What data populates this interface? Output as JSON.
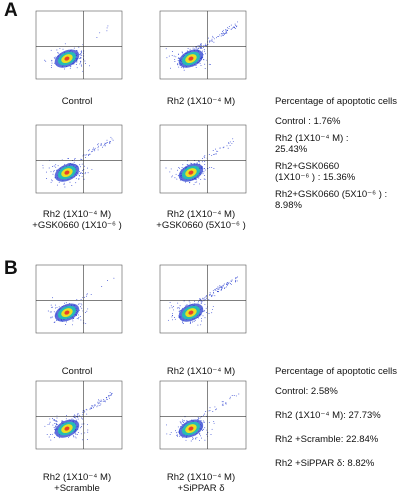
{
  "panels": [
    {
      "letter": "A",
      "plots": [
        {
          "caption": [
            "Control"
          ]
        },
        {
          "caption": [
            "Rh2 (1X10⁻⁴ M)"
          ]
        },
        {
          "caption": [
            "Rh2 (1X10⁻⁴ M)",
            "+GSK0660 (1X10⁻⁶ )"
          ]
        },
        {
          "caption": [
            "Rh2 (1X10⁻⁴ M)",
            "+GSK0660 (5X10⁻⁶ )"
          ]
        }
      ],
      "legend_title": "Percentage of apoptotic cells",
      "legend": [
        "Control : 1.76%",
        "Rh2 (1X10⁻⁴ M) :",
        "25.43%",
        "Rh2+GSK0660",
        "(1X10⁻⁶ ) : 15.36%",
        "Rh2+GSK0660 (5X10⁻⁶ ) :",
        "8.98%"
      ]
    },
    {
      "letter": "B",
      "plots": [
        {
          "caption": [
            "Control"
          ]
        },
        {
          "caption": [
            "Rh2 (1X10⁻⁴ M)"
          ]
        },
        {
          "caption": [
            "Rh2 (1X10⁻⁴ M)",
            "+Scramble"
          ]
        },
        {
          "caption": [
            "Rh2 (1X10⁻⁴ M)",
            "+SiPPAR δ"
          ]
        }
      ],
      "legend_title": "Percentage of apoptotic cells",
      "legend": [
        "Control: 2.58%",
        "Rh2 (1X10⁻⁴ M): 27.73%",
        "Rh2 +Scramble: 22.84%",
        "Rh2 +SiPPAR δ: 8.82%"
      ]
    }
  ],
  "colors": {
    "axis": "#555555",
    "gate": "#333333",
    "density_low": "#2a3fd0",
    "density_mid": "#22c4b0",
    "density_high": "#f3e21a",
    "density_core": "#e8402a"
  }
}
